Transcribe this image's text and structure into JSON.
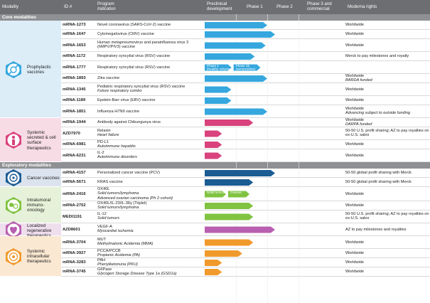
{
  "header": {
    "modality": "Modality",
    "id": "ID #",
    "program": "Program",
    "indication": "Indication",
    "preclinical": "Preclinical\ndevelopment",
    "phase1": "Phase 1",
    "phase2": "Phase 2",
    "phase3": "Phase 3 and\ncommercial",
    "rights": "Moderna rights"
  },
  "colors": {
    "header_bg": "#6d6e71",
    "section_bg": "#8f9093",
    "prophylactic": "#35a7de",
    "systemic_secreted": "#d9427c",
    "cancer": "#1b5c93",
    "intratumoral": "#80c341",
    "localized": "#b85fb0",
    "intracellular": "#f19a2c",
    "prophylactic_group_bg": "#dcedf8",
    "systemic_secreted_group_bg": "#f7dce6",
    "cancer_group_bg": "#dbe3ee",
    "intratumoral_group_bg": "#e5f1d8",
    "localized_group_bg": "#efdeee",
    "intracellular_group_bg": "#fbe8d2"
  },
  "sections": [
    {
      "label": "Core modalities"
    },
    {
      "label": "Exploratory modalities"
    }
  ],
  "groups": [
    {
      "name": "Prophylactic vaccines",
      "icon": "prophylactic-vaccine-icon",
      "color_key": "prophylactic"
    },
    {
      "name": "Systemic secreted & cell surface therapeutics",
      "icon": "systemic-secreted-icon",
      "color_key": "systemic_secreted"
    },
    {
      "name": "Cancer vaccines",
      "icon": "cancer-vaccine-icon",
      "color_key": "cancer"
    },
    {
      "name": "Intratumoral immuno-oncology",
      "icon": "intratumoral-icon",
      "color_key": "intratumoral"
    },
    {
      "name": "Localized regenerative therapeutics",
      "icon": "localized-regenerative-icon",
      "color_key": "localized"
    },
    {
      "name": "Systemic intracellular therapeutics",
      "icon": "systemic-intracellular-icon",
      "color_key": "intracellular"
    }
  ],
  "chart_data": {
    "type": "bar",
    "orientation": "horizontal",
    "stages": [
      "Preclinical development",
      "Phase 1",
      "Phase 2",
      "Phase 3 and commercial"
    ],
    "rows": [
      {
        "group": 0,
        "id": "mRNA-1273",
        "program": "Novel coronavirus (SARS-CoV-2) vaccine",
        "indication": "",
        "stage": 2.0,
        "bar_label": "",
        "rights": "Worldwide",
        "rights_note": ""
      },
      {
        "group": 0,
        "id": "mRNA-1647",
        "program": "Cytomegalovirus (CMV) vaccine",
        "indication": "",
        "stage": 2.25,
        "bar_label": "",
        "rights": "Worldwide",
        "rights_note": ""
      },
      {
        "group": 0,
        "id": "mRNA-1653",
        "program": "Human metapneumovirus and parainfluenza virus 3 (hMPV/PIV3) vaccine",
        "indication": "",
        "stage": 1.95,
        "bar_label": "",
        "rights": "Worldwide",
        "rights_note": ""
      },
      {
        "group": 0,
        "id": "mRNA-1172",
        "program": "Respiratory syncytial virus (RSV) vaccine",
        "indication": "",
        "stage": 1.6,
        "bar_label": "",
        "rights": "Merck to pay milestones and royalty",
        "rights_note": ""
      },
      {
        "group": 0,
        "id": "mRNA-1777",
        "program": "Respiratory syncytial virus (RSV) vaccine",
        "indication": "",
        "stage": 1.85,
        "bar_label": "",
        "sub_bars": [
          "Phase 1 (healthy volunteers)",
          "Phase 1b (seropositive)"
        ],
        "rights": "",
        "rights_note": ""
      },
      {
        "group": 0,
        "id": "mRNA-1893",
        "program": "Zika vaccine",
        "indication": "",
        "stage": 2.0,
        "bar_label": "",
        "rights": "Worldwide",
        "rights_note": "BARDA funded"
      },
      {
        "group": 0,
        "id": "mRNA-1345",
        "program": "Pediatric respiratory syncytial virus (RSV) vaccine",
        "indication": "Future respiratory combo",
        "stage": 0.85,
        "bar_label": "",
        "rights": "Worldwide",
        "rights_note": ""
      },
      {
        "group": 0,
        "id": "mRNA-1189",
        "program": "Epstein-Barr virus (EBV) vaccine",
        "indication": "",
        "stage": 0.85,
        "bar_label": "",
        "rights": "Worldwide",
        "rights_note": ""
      },
      {
        "group": 0,
        "id": "mRNA-1851",
        "program": "Influenza H7N9 vaccine",
        "indication": "",
        "stage": 2.0,
        "bar_label": "",
        "rights": "Worldwide",
        "rights_note": "Advancing subject to outside funding"
      },
      {
        "group": 1,
        "id": "mRNA-1944",
        "program": "Antibody against Chikungunya virus",
        "indication": "",
        "stage": 1.55,
        "bar_label": "",
        "rights": "Worldwide",
        "rights_note": "DARPA funded"
      },
      {
        "group": 1,
        "id": "AZD7970",
        "program": "Relaxin",
        "indication": "Heart failure",
        "stage": 0.55,
        "bar_label": "",
        "rights": "50-50 U.S. profit sharing; AZ to pay royalties on ex-U.S. sales",
        "rights_note": ""
      },
      {
        "group": 1,
        "id": "mRNA-6981",
        "program": "PD-L1",
        "indication": "Autoimmune hepatitis",
        "stage": 0.55,
        "bar_label": "",
        "rights": "Worldwide",
        "rights_note": ""
      },
      {
        "group": 1,
        "id": "mRNA-6231",
        "program": "IL-2",
        "indication": "Autoimmune disorders",
        "stage": 0.55,
        "bar_label": "",
        "rights": "Worldwide",
        "rights_note": ""
      },
      {
        "group": 2,
        "id": "mRNA-4157",
        "program": "Personalized cancer vaccine (PCV)",
        "indication": "",
        "stage": 2.25,
        "bar_label": "",
        "rights": "50-50 global profit sharing with Merck",
        "rights_note": ""
      },
      {
        "group": 2,
        "id": "mRNA-5671",
        "program": "KRAS vaccine",
        "indication": "",
        "stage": 1.55,
        "bar_label": "",
        "rights": "50-50 global profit sharing with Merck",
        "rights_note": ""
      },
      {
        "group": 3,
        "id": "mRNA-2416",
        "program": "OX40L",
        "indication": "Solid tumors/lymphoma",
        "indication2": "Advanced ovarian carcinoma (Ph 2 cohort)",
        "stage": 1.5,
        "bar_label": "",
        "sub_bars": [
          "Solid tumors/ lymphoma",
          "Ovarian"
        ],
        "rights": "Worldwide",
        "rights_note": ""
      },
      {
        "group": 3,
        "id": "mRNA-2752",
        "program": "OX40L/IL-23/IL-36γ (Triplet)",
        "indication": "Solid tumors/lymphoma",
        "stage": 1.55,
        "bar_label": "",
        "rights": "Worldwide",
        "rights_note": ""
      },
      {
        "group": 3,
        "id": "MEDI1191",
        "program": "IL-12",
        "indication": "Solid tumors",
        "stage": 1.55,
        "bar_label": "",
        "rights": "50-50 U.S. profit sharing; AZ to pay royalties on ex-U.S. sales",
        "rights_note": ""
      },
      {
        "group": 4,
        "id": "AZD8601",
        "program": "VEGF-A",
        "indication": "Myocardial ischemia",
        "stage": 2.25,
        "bar_label": "",
        "rights": "AZ to pay milestones and royalties",
        "rights_note": ""
      },
      {
        "group": 5,
        "id": "mRNA-3704",
        "program": "MUT",
        "indication": "Methylmalonic Acidemia (MMA)",
        "stage": 1.55,
        "bar_label": "",
        "rights": "Worldwide",
        "rights_note": ""
      },
      {
        "group": 5,
        "id": "mRNA-3927",
        "program": "PCCA/PCCB",
        "indication": "Propionic Acidemia (PA)",
        "stage": 1.2,
        "bar_label": "",
        "rights": "Worldwide",
        "rights_note": ""
      },
      {
        "group": 5,
        "id": "mRNA-3283",
        "program": "PAH",
        "indication": "Phenylketonuria (PKU)",
        "stage": 0.55,
        "bar_label": "",
        "rights": "Worldwide",
        "rights_note": ""
      },
      {
        "group": 5,
        "id": "mRNA-3745",
        "program": "G6Pase",
        "indication": "Glycogen Storage Disease Type 1a (GSD1a)",
        "stage": 0.55,
        "bar_label": "",
        "rights": "Worldwide",
        "rights_note": ""
      }
    ]
  }
}
